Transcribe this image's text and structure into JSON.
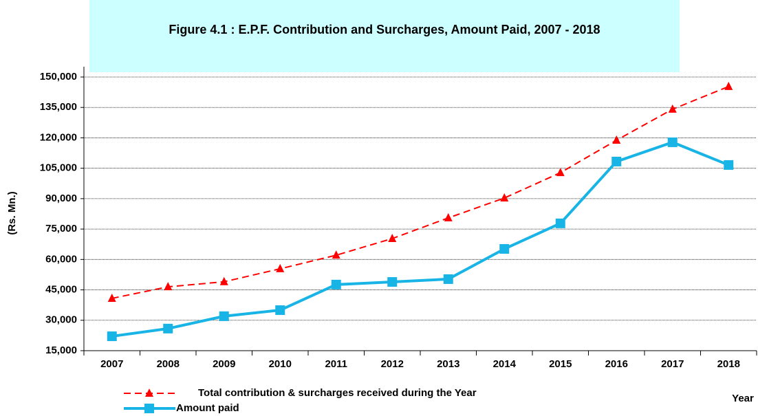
{
  "chart_data": {
    "type": "line",
    "title": "Figure 4.1 : E.P.F. Contribution and Surcharges, Amount Paid,  2007 - 2018",
    "x_label": "Year",
    "y_label": "(Rs.  Mn.)",
    "categories": [
      "2007",
      "2008",
      "2009",
      "2010",
      "2011",
      "2012",
      "2013",
      "2014",
      "2015",
      "2016",
      "2017",
      "2018"
    ],
    "series": [
      {
        "name": "Total  contribution & surcharges received during the Year",
        "color": "#ff0000",
        "dash": true,
        "marker": "triangle",
        "values": [
          40800,
          46500,
          49000,
          55400,
          62100,
          70300,
          80500,
          90300,
          102800,
          118800,
          134100,
          145300
        ]
      },
      {
        "name": "Amount paid",
        "color": "#19b4e6",
        "dash": false,
        "marker": "square",
        "values": [
          22100,
          25900,
          32000,
          35000,
          47600,
          48900,
          50300,
          65200,
          77800,
          108300,
          117800,
          106600
        ]
      }
    ],
    "ylim": [
      15000,
      150000
    ],
    "yticks": [
      {
        "value": 15000,
        "label": "15,000"
      },
      {
        "value": 30000,
        "label": "30,000"
      },
      {
        "value": 45000,
        "label": "45,000"
      },
      {
        "value": 60000,
        "label": "60,000"
      },
      {
        "value": 75000,
        "label": "75,000"
      },
      {
        "value": 90000,
        "label": "90,000"
      },
      {
        "value": 105000,
        "label": "105,000"
      },
      {
        "value": 120000,
        "label": "120,000"
      },
      {
        "value": 135000,
        "label": "135,000"
      },
      {
        "value": 150000,
        "label": "150,000"
      }
    ],
    "grid": true
  }
}
